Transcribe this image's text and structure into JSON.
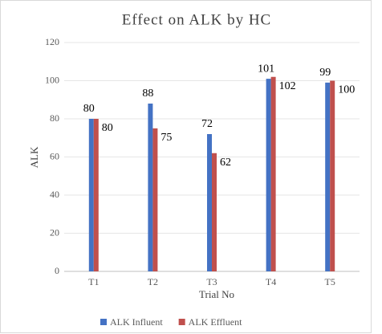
{
  "chart_data": {
    "type": "bar",
    "title": "Effect on ALK by HC",
    "x_label": "Trial No",
    "y_label": "ALK",
    "categories": [
      "T1",
      "T2",
      "T3",
      "T4",
      "T5"
    ],
    "series": [
      {
        "name": "ALK Influent",
        "color": "#4472c4",
        "values": [
          80,
          88,
          72,
          101,
          99
        ]
      },
      {
        "name": "ALK Effluent",
        "color": "#c0504d",
        "values": [
          80,
          75,
          62,
          102,
          100
        ]
      }
    ],
    "ylim": [
      0,
      120
    ],
    "yticks": [
      0,
      20,
      40,
      60,
      80,
      100,
      120
    ],
    "grid": true,
    "legend": "bottom"
  }
}
